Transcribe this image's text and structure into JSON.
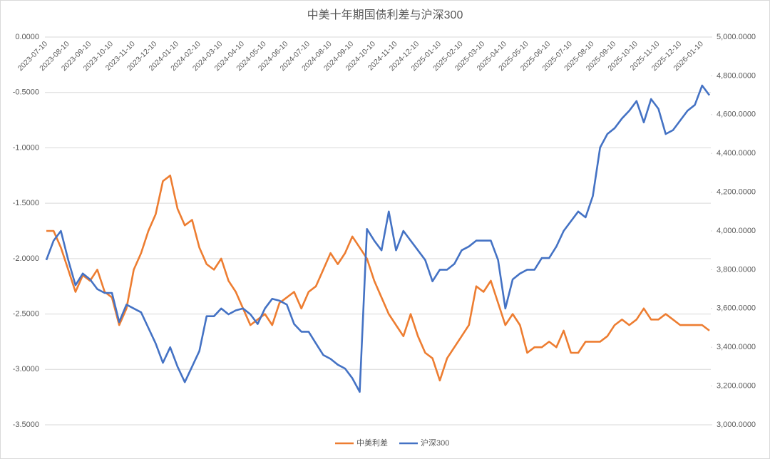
{
  "chart_data": {
    "type": "line",
    "title": "中美十年期国债利差与沪深300",
    "categories": [
      "2023-07-10",
      null,
      null,
      "2023-08-10",
      null,
      null,
      "2023-09-10",
      null,
      null,
      "2023-10-10",
      null,
      null,
      "2023-11-10",
      null,
      null,
      "2023-12-10",
      null,
      null,
      "2024-01-10",
      null,
      null,
      "2024-02-10",
      null,
      null,
      "2024-03-10",
      null,
      null,
      "2024-04-10",
      null,
      null,
      "2024-05-10",
      null,
      null,
      "2024-06-10",
      null,
      null,
      "2024-07-10",
      null,
      null,
      "2024-08-10",
      null,
      null,
      "2024-09-10",
      null,
      null,
      "2024-10-10",
      null,
      null,
      "2024-11-10",
      null,
      null,
      "2024-12-10",
      null,
      null,
      "2025-01-10",
      null,
      null,
      "2025-02-10",
      null,
      null,
      "2025-03-10",
      null,
      null,
      "2025-04-10",
      null,
      null,
      "2025-05-10",
      null,
      null,
      "2025-06-10",
      null,
      null,
      "2025-07-10",
      null,
      null,
      "2025-08-10",
      null,
      null,
      "2025-09-10",
      null,
      null,
      "2025-10-10",
      null,
      null,
      "2025-11-10",
      null,
      null,
      "2025-12-10",
      null,
      null,
      "2026-01-10",
      null
    ],
    "series": [
      {
        "name": "中美利差",
        "color": "#ed7d31",
        "values": [
          -1.75,
          -1.75,
          -1.9,
          -2.1,
          -2.3,
          -2.15,
          -2.2,
          -2.1,
          -2.3,
          -2.35,
          -2.6,
          -2.45,
          -2.1,
          -1.95,
          -1.75,
          -1.6,
          -1.3,
          -1.25,
          -1.55,
          -1.7,
          -1.65,
          -1.9,
          -2.05,
          -2.1,
          -2.0,
          -2.2,
          -2.3,
          -2.45,
          -2.6,
          -2.55,
          -2.5,
          -2.6,
          -2.4,
          -2.35,
          -2.3,
          -2.45,
          -2.3,
          -2.25,
          -2.1,
          -1.95,
          -2.05,
          -1.95,
          -1.8,
          -1.9,
          -2.0,
          -2.2,
          -2.35,
          -2.5,
          -2.6,
          -2.7,
          -2.5,
          -2.7,
          -2.85,
          -2.9,
          -3.1,
          -2.9,
          -2.8,
          -2.7,
          -2.6,
          -2.25,
          -2.3,
          -2.2,
          -2.4,
          -2.6,
          -2.5,
          -2.6,
          -2.85,
          -2.8,
          -2.8,
          -2.75,
          -2.8,
          -2.65,
          -2.85,
          -2.85,
          -2.75,
          -2.75,
          -2.75,
          -2.7,
          -2.6,
          -2.55,
          -2.6,
          -2.55,
          -2.45,
          -2.55,
          -2.55,
          -2.5,
          -2.55,
          -2.6,
          -2.6,
          -2.6,
          -2.6,
          -2.65
        ]
      },
      {
        "name": "沪深300",
        "color": "#4472c4",
        "axis": "y2",
        "values": [
          3850,
          3950,
          4000,
          3850,
          3720,
          3780,
          3750,
          3700,
          3680,
          3680,
          3530,
          3620,
          3600,
          3580,
          3500,
          3420,
          3320,
          3400,
          3300,
          3220,
          3300,
          3380,
          3560,
          3560,
          3600,
          3570,
          3590,
          3600,
          3570,
          3520,
          3600,
          3650,
          3640,
          3620,
          3520,
          3480,
          3480,
          3420,
          3360,
          3340,
          3310,
          3290,
          3240,
          3170,
          4010,
          3950,
          3900,
          4100,
          3900,
          4000,
          3950,
          3900,
          3850,
          3740,
          3800,
          3800,
          3830,
          3900,
          3920,
          3950,
          3950,
          3950,
          3850,
          3600,
          3750,
          3780,
          3800,
          3800,
          3860,
          3860,
          3920,
          4000,
          4050,
          4100,
          4070,
          4180,
          4430,
          4500,
          4530,
          4580,
          4620,
          4670,
          4560,
          4680,
          4630,
          4500,
          4520,
          4570,
          4620,
          4650,
          4750,
          4700
        ]
      }
    ],
    "ylim": [
      -3.5,
      0
    ],
    "yticks": [
      {
        "value": 0,
        "label": "0.0000"
      },
      {
        "value": -0.5,
        "label": "-0.5000"
      },
      {
        "value": -1,
        "label": "-1.0000"
      },
      {
        "value": -1.5,
        "label": "-1.5000"
      },
      {
        "value": -2,
        "label": "-2.0000"
      },
      {
        "value": -2.5,
        "label": "-2.5000"
      },
      {
        "value": -3,
        "label": "-3.0000"
      },
      {
        "value": -3.5,
        "label": "-3.5000"
      }
    ],
    "y2lim": [
      3000,
      5000
    ],
    "y2ticks": [
      {
        "value": 3000,
        "label": "3,000.0000"
      },
      {
        "value": 3200,
        "label": "3,200.0000"
      },
      {
        "value": 3400,
        "label": "3,400.0000"
      },
      {
        "value": 3600,
        "label": "3,600.0000"
      },
      {
        "value": 3800,
        "label": "3,800.0000"
      },
      {
        "value": 4000,
        "label": "4,000.0000"
      },
      {
        "value": 4200,
        "label": "4,200.0000"
      },
      {
        "value": 4400,
        "label": "4,400.0000"
      },
      {
        "value": 4600,
        "label": "4,600.0000"
      },
      {
        "value": 4800,
        "label": "4,800.0000"
      },
      {
        "value": 5000,
        "label": "5,000.0000"
      }
    ],
    "grid": true,
    "legend": "bottom"
  }
}
